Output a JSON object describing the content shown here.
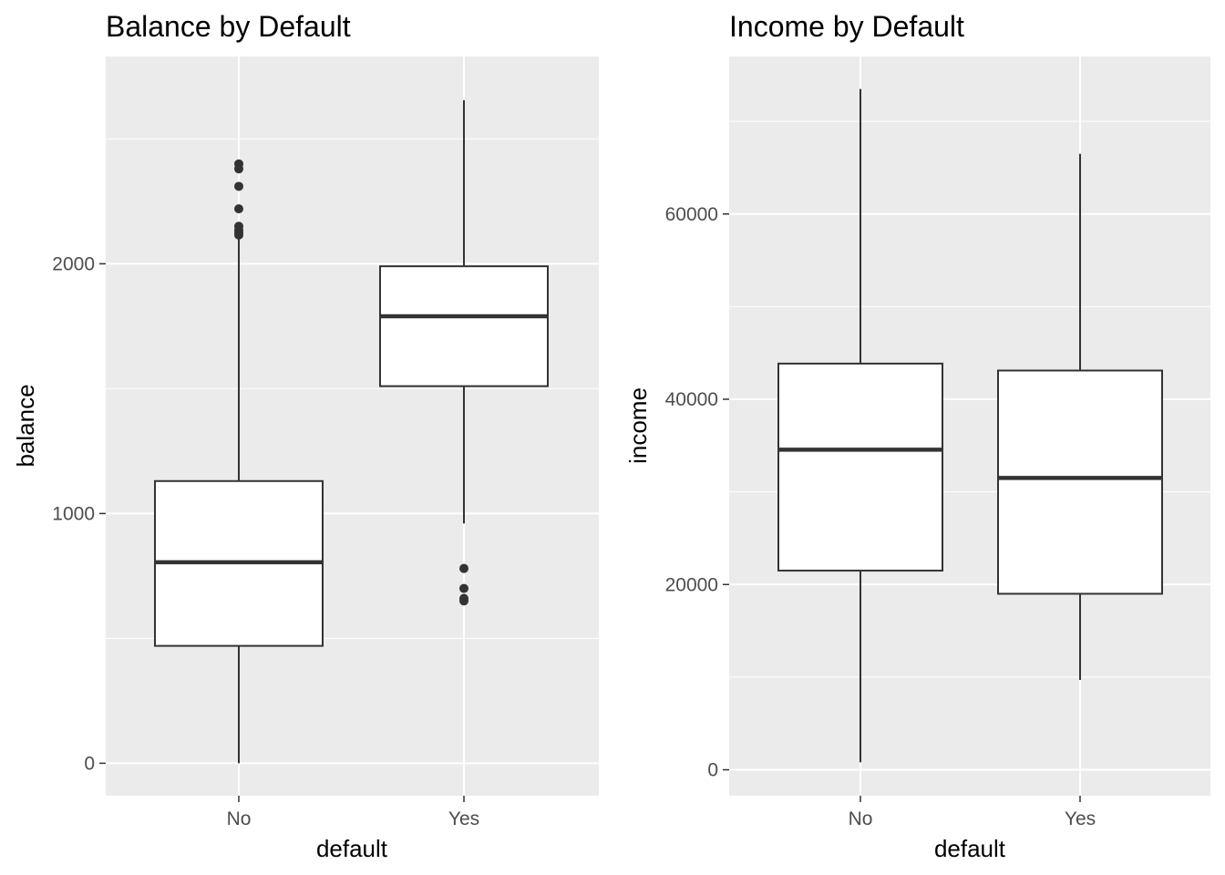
{
  "chart_data": [
    {
      "type": "boxplot",
      "title": "Balance by Default",
      "xlabel": "default",
      "ylabel": "balance",
      "categories": [
        "No",
        "Yes"
      ],
      "ylim": [
        -130,
        2830
      ],
      "y_ticks": [
        0,
        1000,
        2000
      ],
      "y_tick_labels": [
        "0",
        "1000",
        "2000"
      ],
      "grid": true,
      "boxes": [
        {
          "category": "No",
          "whisker_low": 0,
          "q1": 470,
          "median": 805,
          "q3": 1130,
          "whisker_high": 2110,
          "outliers": [
            2115,
            2125,
            2135,
            2150,
            2220,
            2310,
            2380,
            2400
          ]
        },
        {
          "category": "Yes",
          "whisker_low": 960,
          "q1": 1510,
          "median": 1790,
          "q3": 1990,
          "whisker_high": 2655,
          "outliers": [
            650,
            660,
            700,
            780
          ]
        }
      ]
    },
    {
      "type": "boxplot",
      "title": "Income by Default",
      "xlabel": "default",
      "ylabel": "income",
      "categories": [
        "No",
        "Yes"
      ],
      "ylim": [
        -2800,
        77000
      ],
      "y_ticks": [
        0,
        20000,
        40000,
        60000
      ],
      "y_tick_labels": [
        "0",
        "20000",
        "40000",
        "60000"
      ],
      "grid": true,
      "boxes": [
        {
          "category": "No",
          "whisker_low": 800,
          "q1": 21500,
          "median": 34550,
          "q3": 43850,
          "whisker_high": 73500,
          "outliers": []
        },
        {
          "category": "Yes",
          "whisker_low": 9700,
          "q1": 19000,
          "median": 31500,
          "q3": 43100,
          "whisker_high": 66500,
          "outliers": []
        }
      ]
    }
  ],
  "colors": {
    "panel_background": "#ebebeb",
    "grid": "#ffffff",
    "box_fill": "#ffffff",
    "box_stroke": "#333333",
    "tick_text": "#4d4d4d"
  }
}
